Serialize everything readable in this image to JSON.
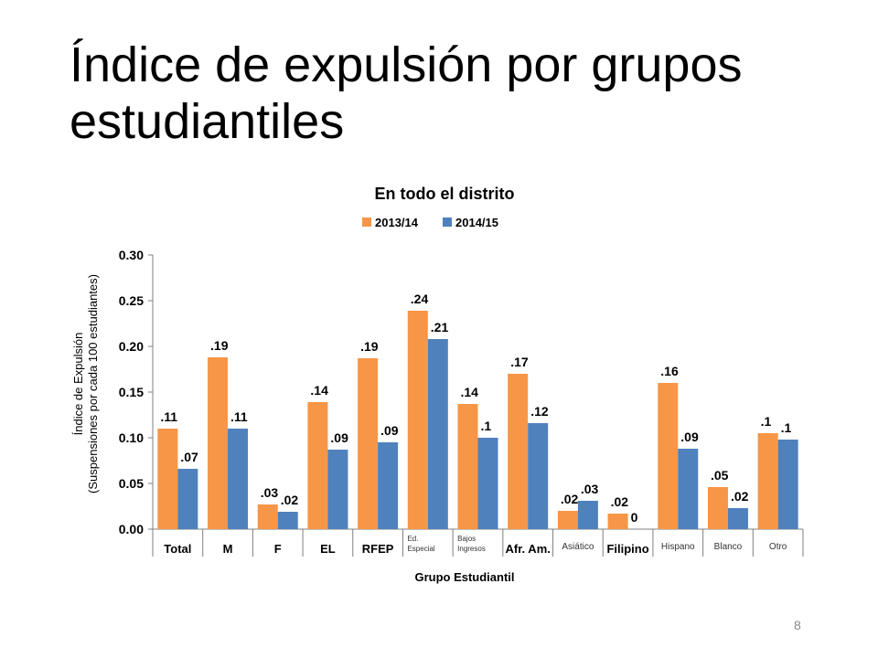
{
  "slide": {
    "title": "Índice de expulsión por grupos estudiantiles",
    "number": "8"
  },
  "colors": {
    "series_2013": "#F79646",
    "series_2014": "#4F81BD",
    "axis": "#808080"
  },
  "chart_data": {
    "type": "bar",
    "title": "En todo el distrito",
    "xlabel": "Grupo Estudiantil",
    "ylabel_line1": "Índice de Expulsión",
    "ylabel_line2": "(Suspensiones por cada 100 estudiantes)",
    "ylim": [
      0,
      0.3
    ],
    "yticks": [
      "0.00",
      "0.05",
      "0.10",
      "0.15",
      "0.20",
      "0.25",
      "0.30"
    ],
    "legend_position": "top",
    "categories": [
      {
        "label": "Total",
        "style": "bold"
      },
      {
        "label": "M",
        "style": "bold"
      },
      {
        "label": "F",
        "style": "bold"
      },
      {
        "label": "EL",
        "style": "bold"
      },
      {
        "label": "RFEP",
        "style": "bold"
      },
      {
        "label": "Ed.\nEspecial",
        "style": "small"
      },
      {
        "label": "Bajos\nIngresos",
        "style": "small"
      },
      {
        "label": "Afr. Am.",
        "style": "bold"
      },
      {
        "label": "Asiático",
        "style": "small"
      },
      {
        "label": "Filipino",
        "style": "bold"
      },
      {
        "label": "Hispano",
        "style": "small"
      },
      {
        "label": "Blanco",
        "style": "small"
      },
      {
        "label": "Otro",
        "style": "small"
      }
    ],
    "series": [
      {
        "name": "2013/14",
        "values": [
          0.11,
          0.188,
          0.027,
          0.139,
          0.187,
          0.239,
          0.137,
          0.17,
          0.02,
          0.017,
          0.16,
          0.046,
          0.105
        ],
        "labels": [
          ".11",
          ".19",
          ".03",
          ".14",
          ".19",
          ".24",
          ".14",
          ".17",
          ".02",
          ".02",
          ".16",
          ".05",
          ".1"
        ]
      },
      {
        "name": "2014/15",
        "values": [
          0.066,
          0.11,
          0.019,
          0.087,
          0.095,
          0.208,
          0.1,
          0.116,
          0.031,
          0.0,
          0.088,
          0.023,
          0.098
        ],
        "labels": [
          ".07",
          ".11",
          ".02",
          ".09",
          ".09",
          ".21",
          ".1",
          ".12",
          ".03",
          "0",
          ".09",
          ".02",
          ".1"
        ]
      }
    ]
  }
}
